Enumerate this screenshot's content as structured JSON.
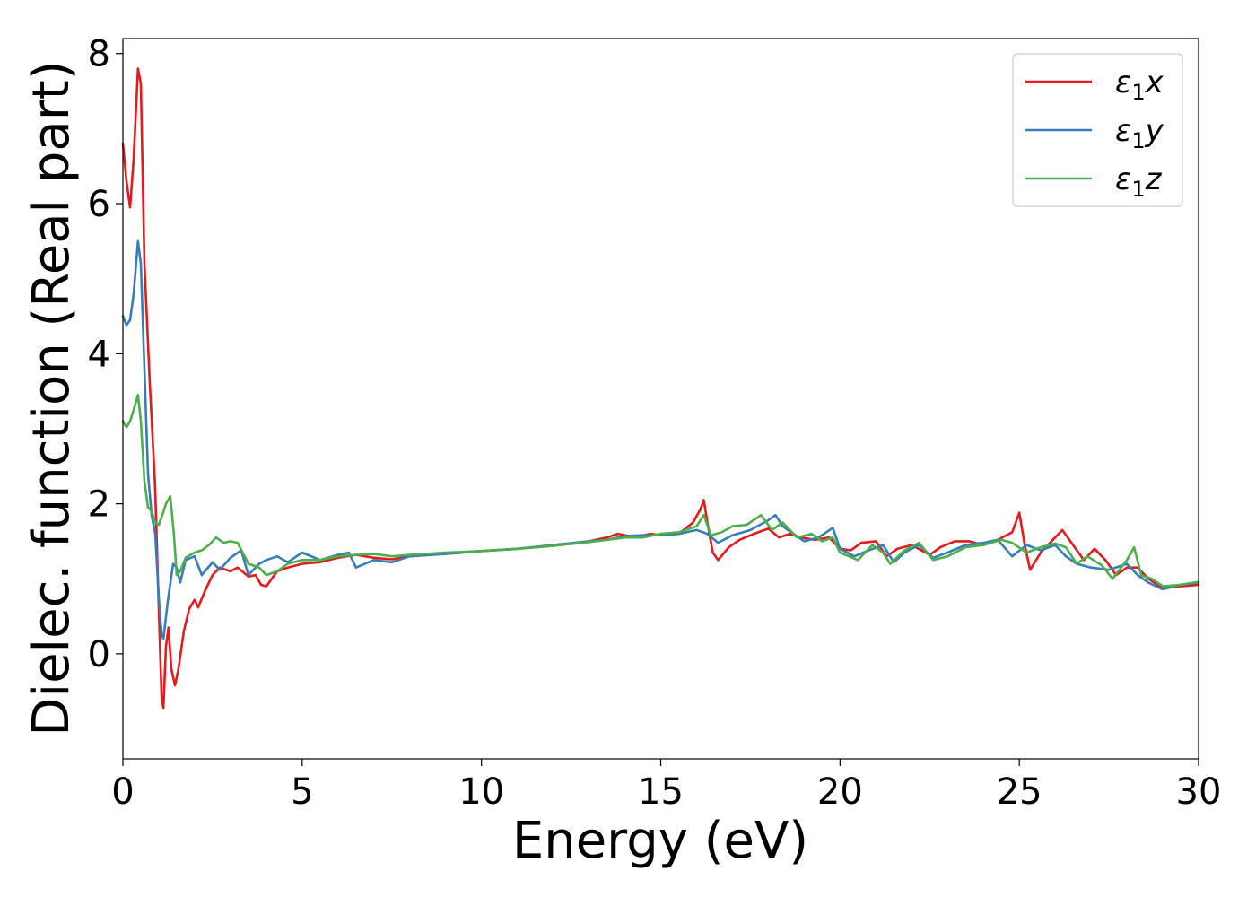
{
  "chart_data": {
    "type": "line",
    "title": "",
    "xlabel": "Energy (eV)",
    "ylabel": "Dielec. function (Real part)",
    "xlim": [
      0,
      30
    ],
    "ylim": [
      -1.4,
      8.2
    ],
    "x_ticks": [
      0,
      5,
      10,
      15,
      20,
      25,
      30
    ],
    "y_ticks": [
      0,
      2,
      4,
      6,
      8
    ],
    "grid": false,
    "legend_position": "top-right",
    "series": [
      {
        "name": "ε₁x",
        "legend_base": "ε",
        "legend_sub": "1",
        "legend_var": "x",
        "color": "#e41a1c",
        "points": [
          [
            0,
            6.8
          ],
          [
            0.1,
            6.3
          ],
          [
            0.2,
            5.95
          ],
          [
            0.3,
            6.6
          ],
          [
            0.42,
            7.8
          ],
          [
            0.5,
            7.6
          ],
          [
            0.6,
            5.2
          ],
          [
            0.75,
            3.6
          ],
          [
            0.9,
            2.2
          ],
          [
            1.0,
            0.6
          ],
          [
            1.08,
            -0.6
          ],
          [
            1.13,
            -0.72
          ],
          [
            1.2,
            0.1
          ],
          [
            1.27,
            0.35
          ],
          [
            1.35,
            -0.2
          ],
          [
            1.45,
            -0.42
          ],
          [
            1.55,
            -0.2
          ],
          [
            1.7,
            0.3
          ],
          [
            1.85,
            0.6
          ],
          [
            2.0,
            0.72
          ],
          [
            2.1,
            0.62
          ],
          [
            2.3,
            0.85
          ],
          [
            2.5,
            1.05
          ],
          [
            2.7,
            1.15
          ],
          [
            3.0,
            1.1
          ],
          [
            3.2,
            1.15
          ],
          [
            3.5,
            1.03
          ],
          [
            3.7,
            1.05
          ],
          [
            3.85,
            0.92
          ],
          [
            4.0,
            0.9
          ],
          [
            4.3,
            1.1
          ],
          [
            4.6,
            1.15
          ],
          [
            5.0,
            1.2
          ],
          [
            5.5,
            1.22
          ],
          [
            6.0,
            1.28
          ],
          [
            6.5,
            1.32
          ],
          [
            7.0,
            1.28
          ],
          [
            7.5,
            1.26
          ],
          [
            8.0,
            1.3
          ],
          [
            9.0,
            1.34
          ],
          [
            10.0,
            1.37
          ],
          [
            11.0,
            1.4
          ],
          [
            12.0,
            1.44
          ],
          [
            13.0,
            1.5
          ],
          [
            13.5,
            1.55
          ],
          [
            13.8,
            1.6
          ],
          [
            14.0,
            1.58
          ],
          [
            14.3,
            1.55
          ],
          [
            14.7,
            1.6
          ],
          [
            15.0,
            1.58
          ],
          [
            15.5,
            1.6
          ],
          [
            15.9,
            1.75
          ],
          [
            16.1,
            1.92
          ],
          [
            16.2,
            2.05
          ],
          [
            16.3,
            1.75
          ],
          [
            16.45,
            1.35
          ],
          [
            16.6,
            1.25
          ],
          [
            16.9,
            1.42
          ],
          [
            17.2,
            1.52
          ],
          [
            17.6,
            1.6
          ],
          [
            18.0,
            1.67
          ],
          [
            18.3,
            1.55
          ],
          [
            18.6,
            1.6
          ],
          [
            18.9,
            1.55
          ],
          [
            19.3,
            1.52
          ],
          [
            19.7,
            1.55
          ],
          [
            20.0,
            1.4
          ],
          [
            20.3,
            1.38
          ],
          [
            20.6,
            1.48
          ],
          [
            21.0,
            1.5
          ],
          [
            21.3,
            1.3
          ],
          [
            21.6,
            1.4
          ],
          [
            22.0,
            1.45
          ],
          [
            22.5,
            1.32
          ],
          [
            22.8,
            1.42
          ],
          [
            23.2,
            1.5
          ],
          [
            23.6,
            1.5
          ],
          [
            24.0,
            1.45
          ],
          [
            24.4,
            1.52
          ],
          [
            24.8,
            1.62
          ],
          [
            25.0,
            1.88
          ],
          [
            25.15,
            1.45
          ],
          [
            25.3,
            1.12
          ],
          [
            25.6,
            1.35
          ],
          [
            26.0,
            1.55
          ],
          [
            26.2,
            1.65
          ],
          [
            26.5,
            1.45
          ],
          [
            26.8,
            1.25
          ],
          [
            27.1,
            1.4
          ],
          [
            27.4,
            1.25
          ],
          [
            27.7,
            1.05
          ],
          [
            28.0,
            1.15
          ],
          [
            28.3,
            1.15
          ],
          [
            28.6,
            1.0
          ],
          [
            29.0,
            0.88
          ],
          [
            29.5,
            0.9
          ],
          [
            30.0,
            0.92
          ]
        ]
      },
      {
        "name": "ε₁y",
        "legend_base": "ε",
        "legend_sub": "1",
        "legend_var": "y",
        "color": "#377eb8",
        "points": [
          [
            0,
            4.5
          ],
          [
            0.1,
            4.38
          ],
          [
            0.2,
            4.45
          ],
          [
            0.3,
            4.8
          ],
          [
            0.42,
            5.5
          ],
          [
            0.5,
            5.2
          ],
          [
            0.6,
            3.8
          ],
          [
            0.7,
            2.4
          ],
          [
            0.8,
            1.85
          ],
          [
            0.9,
            1.6
          ],
          [
            1.0,
            0.75
          ],
          [
            1.08,
            0.25
          ],
          [
            1.13,
            0.2
          ],
          [
            1.25,
            0.7
          ],
          [
            1.4,
            1.2
          ],
          [
            1.5,
            1.15
          ],
          [
            1.6,
            0.95
          ],
          [
            1.75,
            1.25
          ],
          [
            2.0,
            1.3
          ],
          [
            2.2,
            1.05
          ],
          [
            2.5,
            1.22
          ],
          [
            2.7,
            1.12
          ],
          [
            3.0,
            1.28
          ],
          [
            3.3,
            1.38
          ],
          [
            3.5,
            1.05
          ],
          [
            3.8,
            1.2
          ],
          [
            4.0,
            1.25
          ],
          [
            4.3,
            1.3
          ],
          [
            4.6,
            1.22
          ],
          [
            5.0,
            1.35
          ],
          [
            5.5,
            1.25
          ],
          [
            6.0,
            1.32
          ],
          [
            6.3,
            1.35
          ],
          [
            6.5,
            1.15
          ],
          [
            7.0,
            1.25
          ],
          [
            7.5,
            1.22
          ],
          [
            8.0,
            1.3
          ],
          [
            9.0,
            1.33
          ],
          [
            10.0,
            1.37
          ],
          [
            11.0,
            1.4
          ],
          [
            12.0,
            1.45
          ],
          [
            13.0,
            1.5
          ],
          [
            13.5,
            1.52
          ],
          [
            14.0,
            1.57
          ],
          [
            14.5,
            1.58
          ],
          [
            15.0,
            1.58
          ],
          [
            15.5,
            1.6
          ],
          [
            16.0,
            1.65
          ],
          [
            16.3,
            1.6
          ],
          [
            16.6,
            1.48
          ],
          [
            17.0,
            1.58
          ],
          [
            17.5,
            1.65
          ],
          [
            18.0,
            1.78
          ],
          [
            18.2,
            1.85
          ],
          [
            18.4,
            1.7
          ],
          [
            18.7,
            1.6
          ],
          [
            19.0,
            1.5
          ],
          [
            19.4,
            1.55
          ],
          [
            19.8,
            1.68
          ],
          [
            20.0,
            1.4
          ],
          [
            20.4,
            1.3
          ],
          [
            20.8,
            1.38
          ],
          [
            21.2,
            1.45
          ],
          [
            21.5,
            1.22
          ],
          [
            21.8,
            1.35
          ],
          [
            22.2,
            1.45
          ],
          [
            22.6,
            1.28
          ],
          [
            23.0,
            1.35
          ],
          [
            23.5,
            1.45
          ],
          [
            24.0,
            1.48
          ],
          [
            24.4,
            1.52
          ],
          [
            24.8,
            1.3
          ],
          [
            25.2,
            1.45
          ],
          [
            25.6,
            1.38
          ],
          [
            26.0,
            1.45
          ],
          [
            26.3,
            1.3
          ],
          [
            26.6,
            1.2
          ],
          [
            27.0,
            1.15
          ],
          [
            27.5,
            1.12
          ],
          [
            28.0,
            1.2
          ],
          [
            28.3,
            1.05
          ],
          [
            28.6,
            0.95
          ],
          [
            29.0,
            0.86
          ],
          [
            29.5,
            0.92
          ],
          [
            30.0,
            0.95
          ]
        ]
      },
      {
        "name": "ε₁z",
        "legend_base": "ε",
        "legend_sub": "1",
        "legend_var": "z",
        "color": "#4daf4a",
        "points": [
          [
            0,
            3.1
          ],
          [
            0.1,
            3.02
          ],
          [
            0.2,
            3.1
          ],
          [
            0.3,
            3.25
          ],
          [
            0.42,
            3.45
          ],
          [
            0.5,
            3.1
          ],
          [
            0.6,
            2.3
          ],
          [
            0.7,
            1.95
          ],
          [
            0.8,
            1.9
          ],
          [
            0.9,
            1.75
          ],
          [
            1.0,
            1.72
          ],
          [
            1.1,
            1.85
          ],
          [
            1.2,
            2.0
          ],
          [
            1.32,
            2.1
          ],
          [
            1.42,
            1.6
          ],
          [
            1.5,
            1.05
          ],
          [
            1.6,
            1.1
          ],
          [
            1.75,
            1.28
          ],
          [
            2.0,
            1.35
          ],
          [
            2.2,
            1.38
          ],
          [
            2.4,
            1.45
          ],
          [
            2.6,
            1.55
          ],
          [
            2.8,
            1.48
          ],
          [
            3.0,
            1.5
          ],
          [
            3.2,
            1.48
          ],
          [
            3.5,
            1.2
          ],
          [
            3.8,
            1.15
          ],
          [
            4.0,
            1.05
          ],
          [
            4.3,
            1.1
          ],
          [
            4.6,
            1.2
          ],
          [
            5.0,
            1.25
          ],
          [
            5.5,
            1.25
          ],
          [
            6.0,
            1.3
          ],
          [
            6.5,
            1.32
          ],
          [
            7.0,
            1.33
          ],
          [
            7.5,
            1.3
          ],
          [
            8.0,
            1.32
          ],
          [
            9.0,
            1.35
          ],
          [
            10.0,
            1.37
          ],
          [
            11.0,
            1.4
          ],
          [
            12.0,
            1.44
          ],
          [
            13.0,
            1.49
          ],
          [
            13.5,
            1.52
          ],
          [
            14.0,
            1.55
          ],
          [
            14.5,
            1.55
          ],
          [
            15.0,
            1.6
          ],
          [
            15.5,
            1.62
          ],
          [
            16.0,
            1.7
          ],
          [
            16.2,
            1.85
          ],
          [
            16.4,
            1.58
          ],
          [
            16.7,
            1.62
          ],
          [
            17.0,
            1.7
          ],
          [
            17.4,
            1.72
          ],
          [
            17.8,
            1.85
          ],
          [
            18.1,
            1.65
          ],
          [
            18.4,
            1.75
          ],
          [
            18.8,
            1.55
          ],
          [
            19.2,
            1.6
          ],
          [
            19.5,
            1.5
          ],
          [
            19.8,
            1.55
          ],
          [
            20.0,
            1.35
          ],
          [
            20.5,
            1.25
          ],
          [
            20.9,
            1.45
          ],
          [
            21.2,
            1.35
          ],
          [
            21.4,
            1.2
          ],
          [
            21.8,
            1.38
          ],
          [
            22.2,
            1.48
          ],
          [
            22.6,
            1.25
          ],
          [
            23.0,
            1.3
          ],
          [
            23.5,
            1.42
          ],
          [
            24.0,
            1.45
          ],
          [
            24.5,
            1.52
          ],
          [
            24.8,
            1.48
          ],
          [
            25.2,
            1.35
          ],
          [
            25.6,
            1.42
          ],
          [
            26.0,
            1.47
          ],
          [
            26.3,
            1.42
          ],
          [
            26.6,
            1.2
          ],
          [
            26.9,
            1.3
          ],
          [
            27.3,
            1.18
          ],
          [
            27.6,
            1.0
          ],
          [
            28.0,
            1.25
          ],
          [
            28.2,
            1.42
          ],
          [
            28.4,
            1.05
          ],
          [
            28.7,
            1.0
          ],
          [
            29.0,
            0.9
          ],
          [
            29.5,
            0.92
          ],
          [
            30.0,
            0.96
          ]
        ]
      }
    ]
  }
}
